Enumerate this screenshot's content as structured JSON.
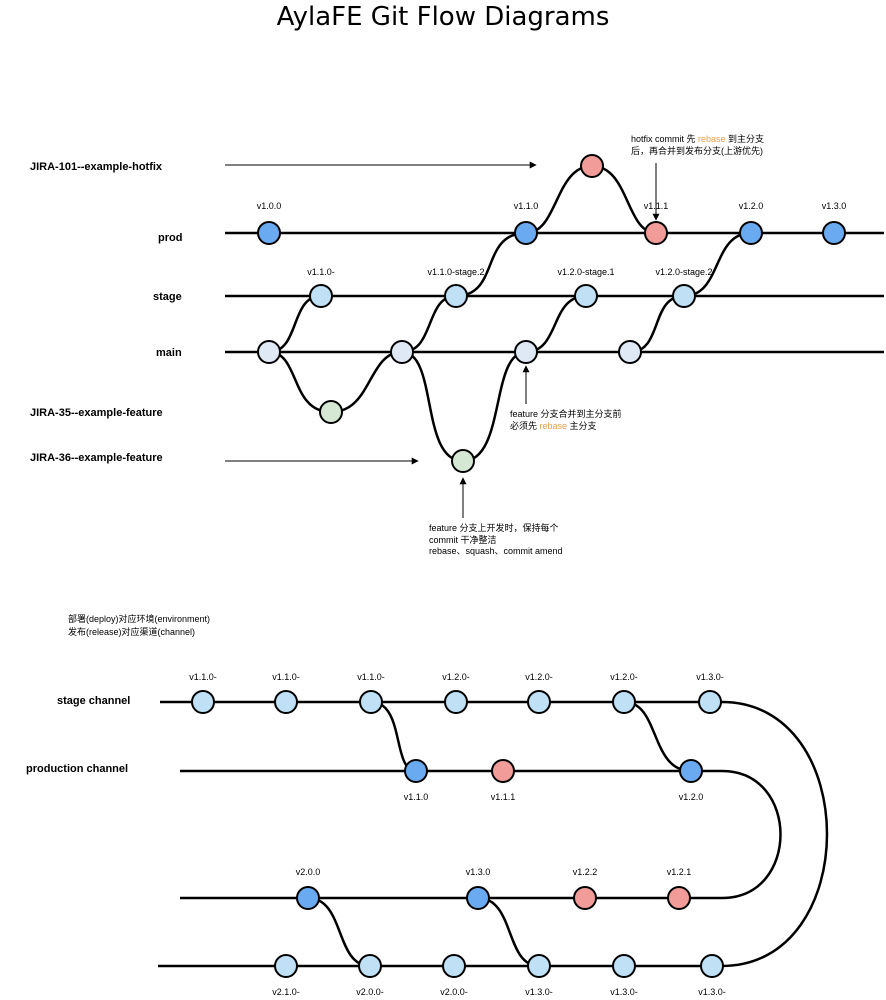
{
  "title": "AylaFE Git Flow Diagrams",
  "colors": {
    "line": "#000000",
    "prod_node": "#6aaaf0",
    "stage_node": "#bfe0f5",
    "main_node": "#dfe8f5",
    "feature_node": "#d5e8d4",
    "hotfix_node": "#f19c99",
    "highlight_text": "#e8a04a"
  },
  "top": {
    "lanes": {
      "hotfix": "JIRA-101--example-hotfix",
      "prod": "prod",
      "stage": "stage",
      "main": "main",
      "feature35": "JIRA-35--example-feature",
      "feature36": "JIRA-36--example-feature"
    },
    "tags": {
      "prod_v100": "v1.0.0",
      "prod_v110": "v1.1.0",
      "prod_v111": "v1.1.1",
      "prod_v120": "v1.2.0",
      "prod_v130": "v1.3.0",
      "stage_v110": "v1.1.0-",
      "stage_v110_2": "v1.1.0-stage.2",
      "stage_v120_1": "v1.2.0-stage.1",
      "stage_v120_2": "v1.2.0-stage.2"
    },
    "note_hotfix": {
      "line1_a": "hotfix commit 先 ",
      "line1_hl": "rebase",
      "line1_b": " 到主分支",
      "line2": "后，再合并到发布分支(上游优先)"
    },
    "note_merge": {
      "line1": "feature 分支合并到主分支前",
      "line2_a": "必须先 ",
      "line2_hl": "rebase",
      "line2_b": " 主分支"
    },
    "note_feature": {
      "line1": "feature 分支上开发时，保持每个",
      "line2": "commit 干净整洁",
      "line3": "rebase、squash、commit amend"
    }
  },
  "bottom": {
    "intro_line1": "部署(deploy)对应环境(environment)",
    "intro_line2": "发布(release)对应渠道(channel)",
    "lanes": {
      "stage_channel": "stage channel",
      "production_channel": "production channel"
    },
    "stage_tags": [
      "v1.1.0-",
      "v1.1.0-",
      "v1.1.0-",
      "v1.2.0-",
      "v1.2.0-",
      "v1.2.0-",
      "v1.3.0-"
    ],
    "production_tags": [
      "v1.1.0",
      "v1.1.1",
      "v1.2.0"
    ],
    "lane3_tags": [
      "v2.0.0",
      "v1.3.0",
      "v1.2.2",
      "v1.2.1"
    ],
    "lane4_tags": [
      "v2.1.0-",
      "v2.0.0-",
      "v2.0.0-",
      "v1.3.0-",
      "v1.3.0-",
      "v1.3.0-"
    ]
  }
}
